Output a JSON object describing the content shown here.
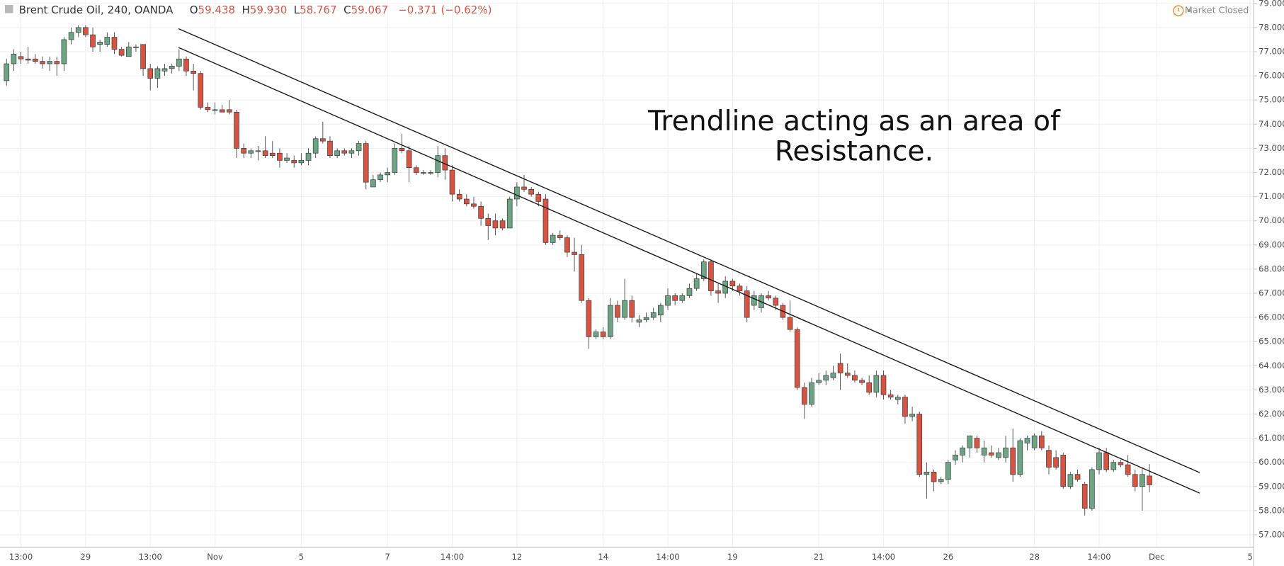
{
  "header": {
    "symbol": "Brent Crude Oil, 240, OANDA",
    "ohlc": [
      {
        "label": "O",
        "value": "59.438"
      },
      {
        "label": "H",
        "value": "59.930"
      },
      {
        "label": "L",
        "value": "58.767"
      },
      {
        "label": "C",
        "value": "59.067"
      }
    ],
    "change": "−0.371 (−0.62%)",
    "status": "Market Closed"
  },
  "chart_data": {
    "type": "candlestick",
    "annotations": [
      "Trendline acting as an area of",
      "Resistance."
    ],
    "up_color": "#6ba583",
    "down_color": "#d75442",
    "grid": true,
    "categories": [
      null,
      null,
      "13:00",
      null,
      null,
      null,
      null,
      null,
      null,
      null,
      null,
      "29",
      null,
      null,
      null,
      null,
      null,
      null,
      null,
      null,
      "13:00",
      null,
      null,
      null,
      null,
      null,
      null,
      null,
      null,
      "Nov",
      null,
      null,
      null,
      null,
      null,
      null,
      null,
      null,
      null,
      null,
      null,
      "5",
      null,
      null,
      null,
      null,
      null,
      null,
      null,
      null,
      null,
      null,
      null,
      "7",
      null,
      null,
      null,
      null,
      null,
      null,
      null,
      null,
      "14:00",
      null,
      null,
      null,
      null,
      null,
      null,
      null,
      null,
      "12",
      null,
      null,
      null,
      null,
      null,
      null,
      null,
      null,
      null,
      null,
      null,
      "14",
      null,
      null,
      null,
      null,
      null,
      null,
      null,
      null,
      "14:00",
      null,
      null,
      null,
      null,
      null,
      null,
      null,
      null,
      "19",
      null,
      null,
      null,
      null,
      null,
      null,
      null,
      null,
      null,
      null,
      null,
      "21",
      null,
      null,
      null,
      null,
      null,
      null,
      null,
      null,
      "14:00",
      null,
      null,
      null,
      null,
      null,
      null,
      null,
      null,
      "26",
      null,
      null,
      null,
      null,
      null,
      null,
      null,
      null,
      null,
      null,
      null,
      "28",
      null,
      null,
      null,
      null,
      null,
      null,
      null,
      null,
      "14:00",
      null,
      null,
      null,
      null,
      null,
      null,
      null,
      "Dec",
      null,
      null,
      null,
      null,
      null,
      null,
      null,
      null,
      null,
      null,
      null,
      null,
      "5"
    ],
    "open": [
      75.8,
      76.5,
      76.8,
      76.7,
      76.7,
      76.6,
      76.5,
      76.6,
      76.5,
      77.5,
      77.8,
      78.0,
      77.7,
      77.3,
      77.3,
      77.6,
      77.1,
      76.8,
      77.2,
      77.3,
      76.3,
      75.9,
      76.2,
      76.3,
      76.4,
      76.7,
      76.2,
      76.1,
      74.7,
      74.6,
      74.6,
      74.6,
      74.5,
      73.0,
      72.8,
      72.9,
      72.9,
      72.8,
      72.8,
      72.5,
      72.5,
      72.4,
      72.5,
      72.8,
      73.4,
      73.3,
      72.7,
      72.9,
      72.8,
      72.9,
      73.2,
      71.4,
      71.7,
      71.9,
      72.0,
      73.0,
      72.9,
      72.2,
      72.0,
      72.0,
      72.0,
      72.7,
      72.1,
      71.1,
      70.9,
      70.7,
      70.6,
      70.1,
      70.0,
      70.0,
      69.7,
      70.9,
      71.4,
      71.3,
      71.1,
      70.9,
      69.1,
      69.4,
      69.3,
      68.7,
      68.6,
      66.7,
      65.2,
      65.4,
      65.2,
      66.5,
      66.0,
      66.7,
      65.8,
      65.9,
      66.0,
      66.1,
      66.5,
      66.9,
      66.7,
      66.9,
      67.2,
      67.6,
      68.3,
      67.1,
      67.0,
      67.5,
      67.3,
      67.1,
      66.5,
      66.4,
      66.9,
      66.8,
      66.5,
      66.0,
      65.5,
      63.1,
      62.4,
      63.3,
      63.4,
      63.5,
      64.1,
      63.7,
      63.6,
      63.4,
      63.3,
      62.9,
      63.6,
      62.8,
      62.6,
      62.7,
      61.9,
      62.0,
      59.5,
      59.6,
      59.2,
      59.3,
      60.1,
      60.3,
      60.6,
      61.0,
      60.3,
      60.4,
      60.2,
      60.2,
      60.6,
      59.5,
      60.8,
      60.6,
      61.1,
      60.5,
      60.2,
      60.3,
      59.0,
      59.5,
      59.1,
      58.1,
      59.7,
      60.4,
      59.7,
      60.0,
      59.9,
      59.5,
      59.0,
      59.438,
      null,
      null,
      null,
      null,
      null,
      null,
      null,
      null,
      null,
      null,
      null,
      null,
      null,
      null
    ],
    "high": [
      76.7,
      77.1,
      77.0,
      77.2,
      76.9,
      76.8,
      76.8,
      76.8,
      77.6,
      78.0,
      78.1,
      78.1,
      78.0,
      77.5,
      77.8,
      77.8,
      77.2,
      77.4,
      77.3,
      77.3,
      76.5,
      76.4,
      76.5,
      76.5,
      77.1,
      76.8,
      76.5,
      76.2,
      74.9,
      74.9,
      74.8,
      75.0,
      74.6,
      73.2,
      73.0,
      73.1,
      73.5,
      73.3,
      73.0,
      72.8,
      72.7,
      72.8,
      73.0,
      73.5,
      74.1,
      73.5,
      73.0,
      73.0,
      73.0,
      73.3,
      73.3,
      71.9,
      72.0,
      72.2,
      73.2,
      73.6,
      73.1,
      72.3,
      72.1,
      72.1,
      73.1,
      73.0,
      72.3,
      71.3,
      71.1,
      71.0,
      70.8,
      70.3,
      70.3,
      70.1,
      71.0,
      71.6,
      71.9,
      71.4,
      71.2,
      71.1,
      69.5,
      69.6,
      69.4,
      69.3,
      69.0,
      66.8,
      65.5,
      65.6,
      66.8,
      66.7,
      67.6,
      66.9,
      66.1,
      66.2,
      66.4,
      66.6,
      67.2,
      67.0,
      67.0,
      67.4,
      67.8,
      68.4,
      68.4,
      67.4,
      67.7,
      67.6,
      67.4,
      67.3,
      67.1,
      67.0,
      67.1,
      66.9,
      66.6,
      66.7,
      65.6,
      63.3,
      63.5,
      63.7,
      63.8,
      64.0,
      64.5,
      64.1,
      63.8,
      63.5,
      63.6,
      63.8,
      63.8,
      63.0,
      62.8,
      62.8,
      62.3,
      62.1,
      60.0,
      59.7,
      59.4,
      60.1,
      60.5,
      60.7,
      61.1,
      61.1,
      60.9,
      60.7,
      60.6,
      61.1,
      61.4,
      61.0,
      61.1,
      61.2,
      61.3,
      60.7,
      60.5,
      60.4,
      59.6,
      59.7,
      59.2,
      59.8,
      60.6,
      60.6,
      60.1,
      60.1,
      60.3,
      59.7,
      59.8,
      59.93,
      null,
      null,
      null,
      null,
      null,
      null,
      null,
      null,
      null,
      null,
      null,
      null,
      null,
      null
    ],
    "low": [
      75.6,
      76.2,
      76.5,
      76.5,
      76.5,
      76.3,
      76.2,
      76.0,
      76.2,
      77.3,
      77.6,
      77.6,
      77.0,
      77.0,
      77.2,
      76.9,
      76.8,
      76.8,
      77.0,
      76.0,
      75.4,
      75.5,
      76.0,
      76.1,
      76.2,
      76.0,
      75.4,
      74.6,
      74.5,
      74.4,
      74.5,
      74.4,
      72.6,
      72.6,
      72.6,
      72.5,
      72.6,
      72.6,
      72.2,
      72.4,
      72.2,
      72.3,
      72.3,
      72.6,
      73.2,
      72.6,
      72.6,
      72.7,
      72.6,
      72.7,
      71.3,
      71.4,
      71.6,
      71.6,
      71.9,
      72.8,
      71.6,
      71.9,
      71.9,
      71.9,
      71.8,
      71.7,
      70.8,
      70.8,
      70.6,
      70.5,
      69.8,
      69.2,
      69.4,
      69.6,
      69.7,
      70.6,
      71.2,
      71.0,
      70.6,
      69.0,
      69.0,
      69.2,
      68.5,
      67.9,
      66.6,
      64.7,
      65.1,
      65.1,
      65.1,
      65.8,
      65.9,
      65.8,
      65.6,
      65.8,
      65.9,
      65.8,
      66.3,
      66.5,
      66.6,
      66.8,
      67.1,
      67.5,
      66.9,
      66.6,
      66.8,
      67.1,
      66.9,
      65.8,
      66.3,
      66.2,
      66.7,
      66.3,
      65.9,
      65.4,
      63.0,
      61.8,
      62.3,
      63.2,
      63.2,
      63.4,
      63.0,
      63.5,
      63.3,
      63.2,
      62.8,
      62.7,
      62.6,
      62.6,
      62.4,
      61.6,
      61.7,
      59.4,
      58.5,
      58.8,
      59.1,
      59.1,
      59.9,
      60.0,
      60.2,
      60.4,
      60.0,
      60.2,
      60.1,
      60.0,
      59.2,
      59.4,
      60.5,
      60.5,
      60.5,
      59.5,
      59.7,
      58.9,
      58.9,
      59.2,
      57.8,
      58.0,
      59.5,
      59.6,
      59.6,
      59.8,
      59.4,
      58.8,
      58.0,
      58.767,
      null,
      null,
      null,
      null,
      null,
      null,
      null,
      null,
      null,
      null,
      null,
      null,
      null,
      null
    ],
    "close": [
      76.5,
      76.9,
      76.7,
      76.65,
      76.6,
      76.5,
      76.6,
      76.5,
      77.5,
      77.8,
      78.0,
      77.7,
      77.2,
      77.4,
      77.6,
      77.1,
      76.85,
      77.2,
      77.2,
      76.3,
      75.9,
      76.3,
      76.3,
      76.4,
      76.7,
      76.2,
      76.1,
      74.7,
      74.6,
      74.6,
      74.5,
      74.5,
      73.0,
      72.8,
      72.9,
      72.9,
      72.7,
      72.7,
      72.5,
      72.6,
      72.4,
      72.5,
      72.8,
      73.4,
      73.3,
      72.7,
      72.9,
      72.8,
      72.9,
      73.2,
      71.6,
      71.7,
      71.9,
      72.0,
      73.0,
      72.9,
      72.2,
      72.0,
      72.0,
      72.0,
      72.7,
      72.1,
      71.1,
      70.9,
      70.7,
      70.6,
      70.1,
      69.8,
      69.7,
      69.7,
      70.9,
      71.4,
      71.3,
      71.1,
      70.8,
      69.1,
      69.4,
      69.3,
      68.7,
      68.6,
      66.7,
      65.2,
      65.4,
      65.2,
      66.5,
      66.0,
      66.7,
      66.0,
      65.9,
      66.0,
      66.2,
      66.5,
      66.9,
      66.7,
      66.9,
      67.2,
      67.6,
      68.3,
      67.1,
      67.0,
      67.5,
      67.3,
      67.1,
      66.0,
      66.9,
      66.9,
      66.8,
      66.5,
      66.0,
      65.5,
      63.1,
      62.4,
      63.3,
      63.4,
      63.6,
      63.7,
      63.7,
      63.6,
      63.4,
      63.3,
      62.9,
      63.6,
      62.8,
      62.7,
      62.7,
      61.9,
      62.0,
      59.5,
      59.6,
      59.2,
      59.3,
      60.0,
      60.3,
      60.6,
      61.1,
      60.6,
      60.6,
      60.3,
      60.4,
      60.6,
      59.5,
      60.9,
      61.0,
      61.1,
      60.6,
      59.8,
      59.8,
      59.0,
      59.5,
      59.3,
      58.1,
      59.7,
      60.4,
      59.7,
      60.0,
      59.9,
      59.5,
      59.0,
      59.5,
      59.067,
      null,
      null,
      null,
      null,
      null,
      null,
      null,
      null,
      null,
      null,
      null,
      null,
      null,
      null
    ],
    "ylim": [
      56.49,
      79.14
    ],
    "yticks": [
      {
        "value": 57,
        "label": "57.000"
      },
      {
        "value": 58,
        "label": "58.000"
      },
      {
        "value": 59,
        "label": "59.000"
      },
      {
        "value": 60,
        "label": "60.000"
      },
      {
        "value": 61,
        "label": "61.000"
      },
      {
        "value": 62,
        "label": "62.000"
      },
      {
        "value": 63,
        "label": "63.000"
      },
      {
        "value": 64,
        "label": "64.000"
      },
      {
        "value": 65,
        "label": "65.000"
      },
      {
        "value": 66,
        "label": "66.000"
      },
      {
        "value": 67,
        "label": "67.000"
      },
      {
        "value": 68,
        "label": "68.000"
      },
      {
        "value": 69,
        "label": "69.000"
      },
      {
        "value": 70,
        "label": "70.000"
      },
      {
        "value": 71,
        "label": "71.000"
      },
      {
        "value": 72,
        "label": "72.000"
      },
      {
        "value": 73,
        "label": "73.000"
      },
      {
        "value": 74,
        "label": "74.000"
      },
      {
        "value": 75,
        "label": "75.000"
      },
      {
        "value": 76,
        "label": "76.000"
      },
      {
        "value": 77,
        "label": "77.000"
      },
      {
        "value": 78,
        "label": "78.000"
      },
      {
        "value": 79,
        "label": "79.000"
      }
    ]
  }
}
